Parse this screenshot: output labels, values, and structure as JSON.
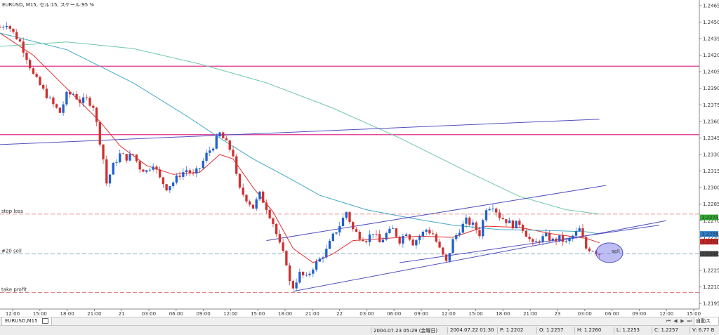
{
  "chart_header": "EURUSD, M15, セル:15, スケール:95 %",
  "chart_data": {
    "type": "candlestick",
    "symbol": "EURUSD",
    "timeframe": "M15",
    "ylim": [
      1.219,
      1.247
    ],
    "y_ticks": [
      "1.2465",
      "1.2450",
      "1.2435",
      "1.2420",
      "1.2405",
      "1.2390",
      "1.2375",
      "1.2360",
      "1.2345",
      "1.2330",
      "1.2315",
      "1.2300",
      "1.2285",
      "1.2270",
      "1.2255",
      "1.2240",
      "1.2225",
      "1.2210",
      "1.2195"
    ],
    "x_ticks": [
      "12:00",
      "15:00",
      "18:00",
      "21:00",
      "21",
      "03:00",
      "06:00",
      "09:00",
      "12:00",
      "15:00",
      "18:00",
      "21:00",
      "22",
      "03:00",
      "06:00",
      "09:00",
      "12:00",
      "15:00",
      "18:00",
      "21:00",
      "23",
      "03:00",
      "06:00",
      "09:00",
      "12:00",
      "15:00"
    ],
    "price_path": [
      {
        "t": 0,
        "p": 1.2445
      },
      {
        "t": 2,
        "p": 1.2449
      },
      {
        "t": 4,
        "p": 1.244
      },
      {
        "t": 6,
        "p": 1.2432
      },
      {
        "t": 8,
        "p": 1.2418
      },
      {
        "t": 10,
        "p": 1.2402
      },
      {
        "t": 13,
        "p": 1.2388
      },
      {
        "t": 16,
        "p": 1.2375
      },
      {
        "t": 18,
        "p": 1.2368
      },
      {
        "t": 20,
        "p": 1.2384
      },
      {
        "t": 22,
        "p": 1.2385
      },
      {
        "t": 24,
        "p": 1.2378
      },
      {
        "t": 26,
        "p": 1.238
      },
      {
        "t": 28,
        "p": 1.2374
      },
      {
        "t": 30,
        "p": 1.2342
      },
      {
        "t": 31,
        "p": 1.2326
      },
      {
        "t": 32,
        "p": 1.2304
      },
      {
        "t": 34,
        "p": 1.232
      },
      {
        "t": 36,
        "p": 1.233
      },
      {
        "t": 38,
        "p": 1.2327
      },
      {
        "t": 40,
        "p": 1.233
      },
      {
        "t": 42,
        "p": 1.2318
      },
      {
        "t": 44,
        "p": 1.2315
      },
      {
        "t": 46,
        "p": 1.2322
      },
      {
        "t": 48,
        "p": 1.2308
      },
      {
        "t": 50,
        "p": 1.23
      },
      {
        "t": 52,
        "p": 1.2305
      },
      {
        "t": 54,
        "p": 1.2312
      },
      {
        "t": 56,
        "p": 1.2316
      },
      {
        "t": 58,
        "p": 1.2311
      },
      {
        "t": 60,
        "p": 1.2318
      },
      {
        "t": 62,
        "p": 1.233
      },
      {
        "t": 64,
        "p": 1.2338
      },
      {
        "t": 66,
        "p": 1.2349
      },
      {
        "t": 68,
        "p": 1.234
      },
      {
        "t": 70,
        "p": 1.233
      },
      {
        "t": 71,
        "p": 1.231
      },
      {
        "t": 72,
        "p": 1.2298
      },
      {
        "t": 74,
        "p": 1.229
      },
      {
        "t": 76,
        "p": 1.2282
      },
      {
        "t": 78,
        "p": 1.2294
      },
      {
        "t": 80,
        "p": 1.2282
      },
      {
        "t": 82,
        "p": 1.2268
      },
      {
        "t": 84,
        "p": 1.2248
      },
      {
        "t": 86,
        "p": 1.2232
      },
      {
        "t": 87,
        "p": 1.2214
      },
      {
        "t": 88,
        "p": 1.221
      },
      {
        "t": 90,
        "p": 1.2222
      },
      {
        "t": 92,
        "p": 1.2218
      },
      {
        "t": 94,
        "p": 1.2228
      },
      {
        "t": 96,
        "p": 1.2235
      },
      {
        "t": 98,
        "p": 1.2243
      },
      {
        "t": 100,
        "p": 1.2256
      },
      {
        "t": 102,
        "p": 1.2266
      },
      {
        "t": 104,
        "p": 1.2278
      },
      {
        "t": 106,
        "p": 1.2262
      },
      {
        "t": 108,
        "p": 1.2256
      },
      {
        "t": 110,
        "p": 1.2253
      },
      {
        "t": 112,
        "p": 1.226
      },
      {
        "t": 114,
        "p": 1.225
      },
      {
        "t": 116,
        "p": 1.2258
      },
      {
        "t": 118,
        "p": 1.2262
      },
      {
        "t": 120,
        "p": 1.2252
      },
      {
        "t": 122,
        "p": 1.226
      },
      {
        "t": 124,
        "p": 1.225
      },
      {
        "t": 126,
        "p": 1.2256
      },
      {
        "t": 128,
        "p": 1.2262
      },
      {
        "t": 130,
        "p": 1.2258
      },
      {
        "t": 132,
        "p": 1.2244
      },
      {
        "t": 134,
        "p": 1.2232
      },
      {
        "t": 136,
        "p": 1.2252
      },
      {
        "t": 138,
        "p": 1.2262
      },
      {
        "t": 140,
        "p": 1.227
      },
      {
        "t": 142,
        "p": 1.2266
      },
      {
        "t": 144,
        "p": 1.2258
      },
      {
        "t": 146,
        "p": 1.2282
      },
      {
        "t": 148,
        "p": 1.2284
      },
      {
        "t": 150,
        "p": 1.2274
      },
      {
        "t": 152,
        "p": 1.227
      },
      {
        "t": 154,
        "p": 1.2266
      },
      {
        "t": 156,
        "p": 1.2268
      },
      {
        "t": 158,
        "p": 1.2258
      },
      {
        "t": 160,
        "p": 1.2248
      },
      {
        "t": 162,
        "p": 1.2253
      },
      {
        "t": 164,
        "p": 1.2256
      },
      {
        "t": 166,
        "p": 1.2252
      },
      {
        "t": 168,
        "p": 1.2254
      },
      {
        "t": 170,
        "p": 1.225
      },
      {
        "t": 172,
        "p": 1.2256
      },
      {
        "t": 174,
        "p": 1.2262
      },
      {
        "t": 176,
        "p": 1.2245
      },
      {
        "t": 178,
        "p": 1.2244
      },
      {
        "t": 180,
        "p": 1.224
      }
    ],
    "moving_averages": [
      {
        "color": "#e03030",
        "points": [
          [
            0,
            1.244
          ],
          [
            10,
            1.242
          ],
          [
            20,
            1.239
          ],
          [
            30,
            1.236
          ],
          [
            36,
            1.2338
          ],
          [
            44,
            1.232
          ],
          [
            52,
            1.2312
          ],
          [
            60,
            1.2314
          ],
          [
            66,
            1.233
          ],
          [
            70,
            1.2326
          ],
          [
            76,
            1.23
          ],
          [
            82,
            1.2278
          ],
          [
            88,
            1.2245
          ],
          [
            94,
            1.2232
          ],
          [
            100,
            1.224
          ],
          [
            106,
            1.2252
          ],
          [
            116,
            1.2254
          ],
          [
            126,
            1.2256
          ],
          [
            136,
            1.2255
          ],
          [
            146,
            1.2265
          ],
          [
            156,
            1.2264
          ],
          [
            166,
            1.2258
          ],
          [
            176,
            1.2254
          ],
          [
            180,
            1.225
          ]
        ]
      },
      {
        "color": "#40a8c8",
        "points": [
          [
            0,
            1.244
          ],
          [
            20,
            1.2425
          ],
          [
            40,
            1.2395
          ],
          [
            56,
            1.2365
          ],
          [
            66,
            1.2345
          ],
          [
            76,
            1.2326
          ],
          [
            86,
            1.231
          ],
          [
            96,
            1.2293
          ],
          [
            110,
            1.228
          ],
          [
            124,
            1.2272
          ],
          [
            136,
            1.2266
          ],
          [
            150,
            1.2262
          ],
          [
            166,
            1.2261
          ],
          [
            176,
            1.226
          ],
          [
            180,
            1.2258
          ]
        ]
      },
      {
        "color": "#70c8a8",
        "points": [
          [
            0,
            1.2428
          ],
          [
            20,
            1.2432
          ],
          [
            40,
            1.2426
          ],
          [
            60,
            1.2412
          ],
          [
            80,
            1.2395
          ],
          [
            100,
            1.2372
          ],
          [
            120,
            1.2345
          ],
          [
            140,
            1.2315
          ],
          [
            156,
            1.2292
          ],
          [
            170,
            1.228
          ],
          [
            180,
            1.2276
          ]
        ]
      }
    ],
    "horizontal_lines": [
      {
        "price": 1.241,
        "color": "#e0308c",
        "style": "solid"
      },
      {
        "price": 1.2348,
        "color": "#e0308c",
        "style": "solid"
      },
      {
        "price": 1.2276,
        "color": "#e07070",
        "style": "dashed",
        "label": "stop loss"
      },
      {
        "price": 1.224,
        "color": "#70a0b0",
        "style": "dashed",
        "label": "#20 sell"
      },
      {
        "price": 1.2205,
        "color": "#e07070",
        "style": "dashed",
        "label": "take profit"
      }
    ],
    "trend_lines": [
      {
        "from": [
          0,
          1.2339
        ],
        "to": [
          180,
          1.2362
        ],
        "color": "#5050c0"
      },
      {
        "from": [
          80,
          1.2252
        ],
        "to": [
          182,
          1.2302
        ],
        "color": "#5050c0"
      },
      {
        "from": [
          88,
          1.2206
        ],
        "to": [
          200,
          1.227
        ],
        "color": "#5050c0"
      },
      {
        "from": [
          120,
          1.2232
        ],
        "to": [
          198,
          1.2266
        ],
        "color": "#5050c0"
      }
    ],
    "price_markers": [
      {
        "price": "1.2273",
        "color": "#30a830"
      },
      {
        "price": "1.2258",
        "color": "#2a7fd0"
      },
      {
        "price": "1.2251",
        "color": "#d02020"
      },
      {
        "price": "1.2240",
        "color": "#444444"
      }
    ],
    "trade_marker_label": "sell"
  },
  "tab": {
    "label": "EURUSD,M15"
  },
  "status": {
    "datetime": "2004.07.23 05:29 (金曜日)",
    "cursor_time": "2004.07.22 01:30",
    "p": "P: 1.2202",
    "o": "O: 1.2257",
    "h": "H: 1.2260",
    "l": "L: 1.2253",
    "c": "C: 1.2257",
    "v": "V: 6.77 B",
    "right_button": "自動スク..."
  }
}
